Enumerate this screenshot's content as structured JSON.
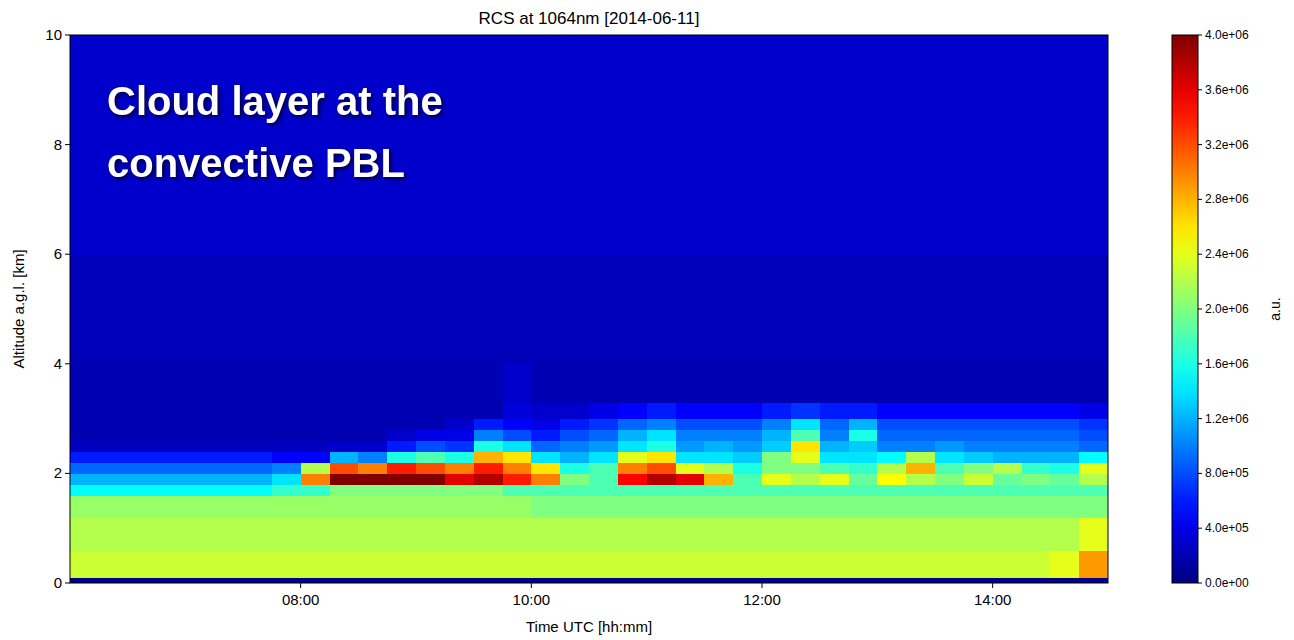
{
  "chart_data": {
    "type": "heatmap",
    "title": "RCS at 1064nm [2014-06-11]",
    "x_label": "Time UTC [hh:mm]",
    "y_label": "Altitude a.g.l. [km]",
    "annotation": [
      "Cloud layer at the",
      "convective PBL"
    ],
    "xlim": [
      6,
      15
    ],
    "ylim": [
      0,
      10
    ],
    "xticks": [
      {
        "value": 8,
        "label": "08:00"
      },
      {
        "value": 10,
        "label": "10:00"
      },
      {
        "value": 12,
        "label": "12:00"
      },
      {
        "value": 14,
        "label": "14:00"
      }
    ],
    "yticks": [
      0,
      2,
      4,
      6,
      8,
      10
    ],
    "grid": false,
    "x_edges": [
      6,
      6.25,
      6.5,
      6.75,
      7,
      7.25,
      7.5,
      7.75,
      8,
      8.25,
      8.5,
      8.75,
      9,
      9.25,
      9.5,
      9.75,
      10,
      10.25,
      10.5,
      10.75,
      11,
      11.25,
      11.5,
      11.75,
      12,
      12.25,
      12.5,
      12.75,
      13,
      13.25,
      13.5,
      13.75,
      14,
      14.25,
      14.5,
      14.75,
      15
    ],
    "y_edges": [
      0,
      0.1,
      0.6,
      1.2,
      1.6,
      1.8,
      2.0,
      2.2,
      2.4,
      2.6,
      2.8,
      3.0,
      3.3,
      4.0,
      6.0,
      10.0
    ],
    "cells": [
      [
        50000.0,
        50000.0,
        50000.0,
        50000.0,
        50000.0,
        50000.0,
        50000.0,
        50000.0,
        50000.0,
        50000.0,
        50000.0,
        50000.0,
        50000.0,
        50000.0,
        50000.0,
        50000.0,
        50000.0,
        50000.0,
        50000.0,
        50000.0,
        50000.0,
        50000.0,
        50000.0,
        50000.0,
        50000.0,
        50000.0,
        50000.0,
        50000.0,
        50000.0,
        50000.0,
        50000.0,
        50000.0,
        50000.0,
        50000.0,
        50000.0,
        50000.0
      ],
      [
        2300000.0,
        2300000.0,
        2300000.0,
        2300000.0,
        2300000.0,
        2300000.0,
        2300000.0,
        2300000.0,
        2300000.0,
        2300000.0,
        2300000.0,
        2300000.0,
        2300000.0,
        2300000.0,
        2300000.0,
        2300000.0,
        2300000.0,
        2300000.0,
        2300000.0,
        2300000.0,
        2300000.0,
        2300000.0,
        2300000.0,
        2300000.0,
        2300000.0,
        2300000.0,
        2300000.0,
        2300000.0,
        2300000.0,
        2300000.0,
        2300000.0,
        2300000.0,
        2300000.0,
        2300000.0,
        2400000.0,
        2900000.0
      ],
      [
        2200000.0,
        2200000.0,
        2200000.0,
        2200000.0,
        2200000.0,
        2200000.0,
        2200000.0,
        2200000.0,
        2200000.0,
        2200000.0,
        2200000.0,
        2200000.0,
        2200000.0,
        2200000.0,
        2200000.0,
        2200000.0,
        2200000.0,
        2200000.0,
        2200000.0,
        2200000.0,
        2200000.0,
        2200000.0,
        2200000.0,
        2200000.0,
        2200000.0,
        2200000.0,
        2200000.0,
        2200000.0,
        2200000.0,
        2200000.0,
        2200000.0,
        2200000.0,
        2200000.0,
        2200000.0,
        2200000.0,
        2400000.0
      ],
      [
        2100000.0,
        2100000.0,
        2100000.0,
        2100000.0,
        2100000.0,
        2100000.0,
        2100000.0,
        2100000.0,
        2100000.0,
        2100000.0,
        2100000.0,
        2100000.0,
        2100000.0,
        2100000.0,
        2100000.0,
        2100000.0,
        2000000.0,
        2000000.0,
        2000000.0,
        2000000.0,
        2000000.0,
        2000000.0,
        2000000.0,
        2000000.0,
        2000000.0,
        2000000.0,
        2000000.0,
        2000000.0,
        2000000.0,
        2000000.0,
        2000000.0,
        2000000.0,
        2000000.0,
        2000000.0,
        2000000.0,
        2000000.0
      ],
      [
        1500000.0,
        1500000.0,
        1500000.0,
        1500000.0,
        1500000.0,
        1500000.0,
        1500000.0,
        1700000.0,
        1700000.0,
        2000000.0,
        2000000.0,
        2000000.0,
        2000000.0,
        2000000.0,
        2000000.0,
        1800000.0,
        1800000.0,
        1800000.0,
        1800000.0,
        1800000.0,
        1800000.0,
        1800000.0,
        1800000.0,
        1800000.0,
        1800000.0,
        1800000.0,
        1800000.0,
        1800000.0,
        1800000.0,
        1800000.0,
        1800000.0,
        1800000.0,
        1800000.0,
        1800000.0,
        1800000.0,
        1800000.0
      ],
      [
        1200000.0,
        1200000.0,
        1200000.0,
        1200000.0,
        1200000.0,
        1200000.0,
        1200000.0,
        1400000.0,
        3000000.0,
        4000000.0,
        4000000.0,
        4000000.0,
        4000000.0,
        3600000.0,
        3800000.0,
        3400000.0,
        3000000.0,
        2000000.0,
        1800000.0,
        3500000.0,
        3800000.0,
        3600000.0,
        2800000.0,
        1800000.0,
        2400000.0,
        2200000.0,
        2400000.0,
        1900000.0,
        2500000.0,
        2200000.0,
        2000000.0,
        2300000.0,
        1900000.0,
        2000000.0,
        1900000.0,
        2200000.0
      ],
      [
        900000.0,
        900000.0,
        900000.0,
        900000.0,
        900000.0,
        900000.0,
        900000.0,
        1000000.0,
        2200000.0,
        3200000.0,
        3000000.0,
        3400000.0,
        3200000.0,
        3000000.0,
        3400000.0,
        3000000.0,
        2600000.0,
        1600000.0,
        1800000.0,
        3000000.0,
        3200000.0,
        2400000.0,
        2200000.0,
        1600000.0,
        2000000.0,
        2000000.0,
        1800000.0,
        1700000.0,
        2200000.0,
        2800000.0,
        1800000.0,
        2000000.0,
        2200000.0,
        1700000.0,
        1600000.0,
        2400000.0
      ],
      [
        600000.0,
        600000.0,
        600000.0,
        600000.0,
        600000.0,
        600000.0,
        600000.0,
        500000.0,
        500000.0,
        1200000.0,
        1000000.0,
        1600000.0,
        1800000.0,
        1600000.0,
        2800000.0,
        2600000.0,
        1400000.0,
        1200000.0,
        1400000.0,
        2400000.0,
        2600000.0,
        1400000.0,
        1400000.0,
        1300000.0,
        2000000.0,
        2400000.0,
        1400000.0,
        1400000.0,
        1500000.0,
        2200000.0,
        1400000.0,
        1300000.0,
        1200000.0,
        1200000.0,
        1200000.0,
        1500000.0
      ],
      [
        250000.0,
        250000.0,
        250000.0,
        250000.0,
        250000.0,
        250000.0,
        250000.0,
        250000.0,
        250000.0,
        300000.0,
        300000.0,
        600000.0,
        800000.0,
        700000.0,
        1600000.0,
        1400000.0,
        900000.0,
        1000000.0,
        1100000.0,
        1400000.0,
        1600000.0,
        1100000.0,
        1200000.0,
        1100000.0,
        1300000.0,
        2600000.0,
        1200000.0,
        1300000.0,
        1000000.0,
        1000000.0,
        1100000.0,
        1000000.0,
        1000000.0,
        1000000.0,
        1000000.0,
        900000.0
      ],
      [
        200000.0,
        200000.0,
        200000.0,
        200000.0,
        200000.0,
        200000.0,
        200000.0,
        200000.0,
        200000.0,
        200000.0,
        200000.0,
        300000.0,
        400000.0,
        400000.0,
        1000000.0,
        800000.0,
        600000.0,
        800000.0,
        900000.0,
        1200000.0,
        1400000.0,
        1000000.0,
        1000000.0,
        1000000.0,
        1200000.0,
        1800000.0,
        1000000.0,
        1600000.0,
        900000.0,
        900000.0,
        900000.0,
        900000.0,
        900000.0,
        900000.0,
        900000.0,
        800000.0
      ],
      [
        200000.0,
        200000.0,
        200000.0,
        200000.0,
        200000.0,
        200000.0,
        200000.0,
        200000.0,
        200000.0,
        200000.0,
        200000.0,
        200000.0,
        200000.0,
        300000.0,
        600000.0,
        500000.0,
        400000.0,
        600000.0,
        700000.0,
        900000.0,
        1000000.0,
        800000.0,
        800000.0,
        800000.0,
        1000000.0,
        1400000.0,
        900000.0,
        1200000.0,
        800000.0,
        800000.0,
        800000.0,
        800000.0,
        800000.0,
        800000.0,
        800000.0,
        700000.0
      ],
      [
        200000.0,
        200000.0,
        200000.0,
        200000.0,
        200000.0,
        200000.0,
        200000.0,
        200000.0,
        200000.0,
        200000.0,
        200000.0,
        200000.0,
        200000.0,
        200000.0,
        200000.0,
        350000.0,
        300000.0,
        300000.0,
        400000.0,
        500000.0,
        600000.0,
        500000.0,
        500000.0,
        500000.0,
        600000.0,
        700000.0,
        600000.0,
        600000.0,
        500000.0,
        500000.0,
        500000.0,
        500000.0,
        500000.0,
        500000.0,
        500000.0,
        400000.0
      ],
      [
        200000.0,
        200000.0,
        200000.0,
        200000.0,
        200000.0,
        200000.0,
        200000.0,
        200000.0,
        200000.0,
        200000.0,
        200000.0,
        200000.0,
        200000.0,
        200000.0,
        200000.0,
        300000.0,
        200000.0,
        200000.0,
        200000.0,
        200000.0,
        200000.0,
        200000.0,
        200000.0,
        200000.0,
        200000.0,
        200000.0,
        200000.0,
        200000.0,
        200000.0,
        200000.0,
        200000.0,
        200000.0,
        200000.0,
        200000.0,
        200000.0,
        200000.0
      ],
      [
        220000.0,
        220000.0,
        220000.0,
        220000.0,
        220000.0,
        220000.0,
        220000.0,
        220000.0,
        220000.0,
        220000.0,
        220000.0,
        220000.0,
        220000.0,
        220000.0,
        220000.0,
        220000.0,
        220000.0,
        220000.0,
        220000.0,
        220000.0,
        220000.0,
        220000.0,
        220000.0,
        220000.0,
        220000.0,
        220000.0,
        220000.0,
        220000.0,
        220000.0,
        220000.0,
        220000.0,
        220000.0,
        220000.0,
        220000.0,
        220000.0,
        220000.0
      ],
      [
        300000.0,
        300000.0,
        300000.0,
        300000.0,
        300000.0,
        300000.0,
        300000.0,
        300000.0,
        300000.0,
        300000.0,
        300000.0,
        300000.0,
        300000.0,
        300000.0,
        300000.0,
        300000.0,
        300000.0,
        300000.0,
        300000.0,
        300000.0,
        300000.0,
        300000.0,
        300000.0,
        300000.0,
        300000.0,
        300000.0,
        300000.0,
        300000.0,
        300000.0,
        300000.0,
        300000.0,
        300000.0,
        300000.0,
        300000.0,
        300000.0,
        300000.0
      ]
    ],
    "colorbar": {
      "range": [
        0,
        4000000
      ],
      "ticks": [
        {
          "value": 0,
          "label": "0.0e+00"
        },
        {
          "value": 400000,
          "label": "4.0e+05"
        },
        {
          "value": 800000,
          "label": "8.0e+05"
        },
        {
          "value": 1200000,
          "label": "1.2e+06"
        },
        {
          "value": 1600000,
          "label": "1.6e+06"
        },
        {
          "value": 2000000,
          "label": "2.0e+06"
        },
        {
          "value": 2400000,
          "label": "2.4e+06"
        },
        {
          "value": 2800000,
          "label": "2.8e+06"
        },
        {
          "value": 3200000,
          "label": "3.2e+06"
        },
        {
          "value": 3600000,
          "label": "3.6e+06"
        },
        {
          "value": 4000000,
          "label": "4.0e+06"
        }
      ],
      "label": "a.u."
    }
  }
}
